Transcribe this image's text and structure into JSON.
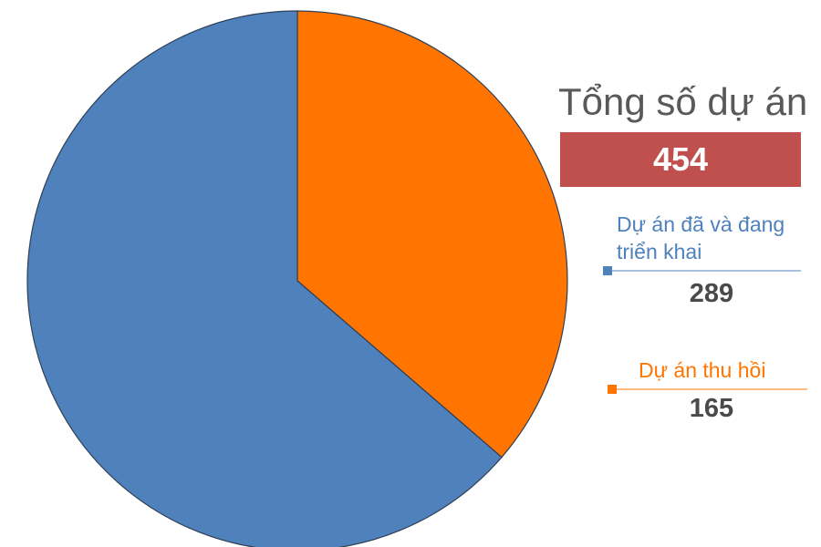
{
  "chart_data": {
    "type": "pie",
    "title": "Tổng số dự án",
    "total": 454,
    "categories": [
      "Dự án đã và đang triển khai",
      "Dự án thu hồi"
    ],
    "values": [
      289,
      165
    ],
    "colors": [
      "#4f81bd",
      "#ff7500"
    ],
    "start_angle": 0,
    "direction": "clockwise",
    "order": [
      1,
      0
    ]
  }
}
